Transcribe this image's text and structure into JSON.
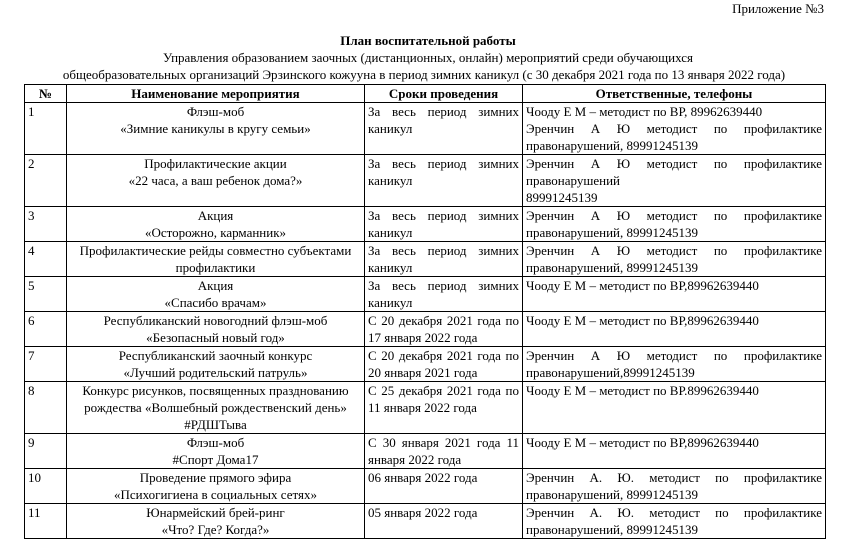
{
  "appendix": "Приложение №3",
  "title": "План воспитательной работы",
  "subtitle_line1": "Управления образованием заочных (дистанционных, онлайн) мероприятий среди обучающихся",
  "subtitle_line2": "общеобразовательных организаций Эрзинского кожууна  в период зимних каникул  (с 30 декабря 2021 года по 13 января 2022 года)",
  "table": {
    "headers": [
      "№",
      "Наименование мероприятия",
      "Сроки проведения",
      "Ответственные, телефоны"
    ],
    "rows": [
      {
        "num": "1",
        "name": [
          "Флэш-моб",
          "«Зимние каникулы в кругу семьи»"
        ],
        "dates": [
          "За весь период зимних каникул"
        ],
        "responsible": [
          "Чооду Е М – методист по ВР, 89962639440",
          "Эренчин А Ю методист по профилактике правонарушений, 89991245139"
        ]
      },
      {
        "num": "2",
        "name": [
          "Профилактические акции",
          "«22 часа, а ваш ребенок дома?»"
        ],
        "dates": [
          "За весь период зимних каникул"
        ],
        "responsible": [
          "Эренчин А Ю методист по профилактике правонарушений",
          "89991245139"
        ]
      },
      {
        "num": "3",
        "name": [
          "Акция",
          "«Осторожно, карманник»"
        ],
        "dates": [
          "За весь период зимних каникул"
        ],
        "responsible": [
          "Эренчин А Ю методист по профилактике правонарушений, 89991245139"
        ]
      },
      {
        "num": "4",
        "name": [
          "Профилактические рейды совместно субъектами профилактики"
        ],
        "dates": [
          "За весь период зимних каникул"
        ],
        "responsible": [
          "Эренчин А Ю методист по профилактике правонарушений, 89991245139"
        ]
      },
      {
        "num": "5",
        "name": [
          "Акция",
          "«Спасибо врачам»"
        ],
        "dates": [
          "За весь период зимних каникул"
        ],
        "responsible": [
          "Чооду Е М – методист по ВР,89962639440"
        ]
      },
      {
        "num": "6",
        "name": [
          "Республиканский новогодний флэш-моб",
          "«Безопасный новый год»"
        ],
        "dates": [
          "С 20 декабря 2021 года по 17 января 2022 года"
        ],
        "responsible": [
          "Чооду Е М – методист по ВР,89962639440"
        ]
      },
      {
        "num": "7",
        "name": [
          "Республиканский заочный конкурс",
          "«Лучший родительский патруль»"
        ],
        "dates": [
          "С 20 декабря 2021 года по 20 января 2021 года"
        ],
        "responsible": [
          "Эренчин А Ю методист по профилактике правонарушений,89991245139"
        ]
      },
      {
        "num": "8",
        "name": [
          "Конкурс рисунков, посвященных празднованию рождества «Волшебный рождественский день»",
          "#РДШТыва"
        ],
        "dates": [
          "С 25 декабря 2021 года по 11 января 2022 года"
        ],
        "responsible": [
          "Чооду Е М – методист по ВР.89962639440"
        ]
      },
      {
        "num": "9",
        "name": [
          "Флэш-моб",
          "#Спорт Дома17"
        ],
        "dates": [
          "С 30 января 2021 года 11 января 2022 года"
        ],
        "responsible": [
          "Чооду Е М – методист по ВР,89962639440"
        ]
      },
      {
        "num": "10",
        "name": [
          "Проведение прямого эфира",
          "«Психогигиена в социальных сетях»"
        ],
        "dates": [
          "06 января 2022 года"
        ],
        "responsible": [
          "Эренчин А. Ю. методист по профилактике правонарушений, 89991245139"
        ]
      },
      {
        "num": "11",
        "name": [
          "Юнармейский брей-ринг",
          "«Что? Где? Когда?»"
        ],
        "dates": [
          "05 января 2022 года"
        ],
        "responsible": [
          "Эренчин А. Ю. методист по профилактике правонарушений, 89991245139"
        ]
      }
    ]
  }
}
